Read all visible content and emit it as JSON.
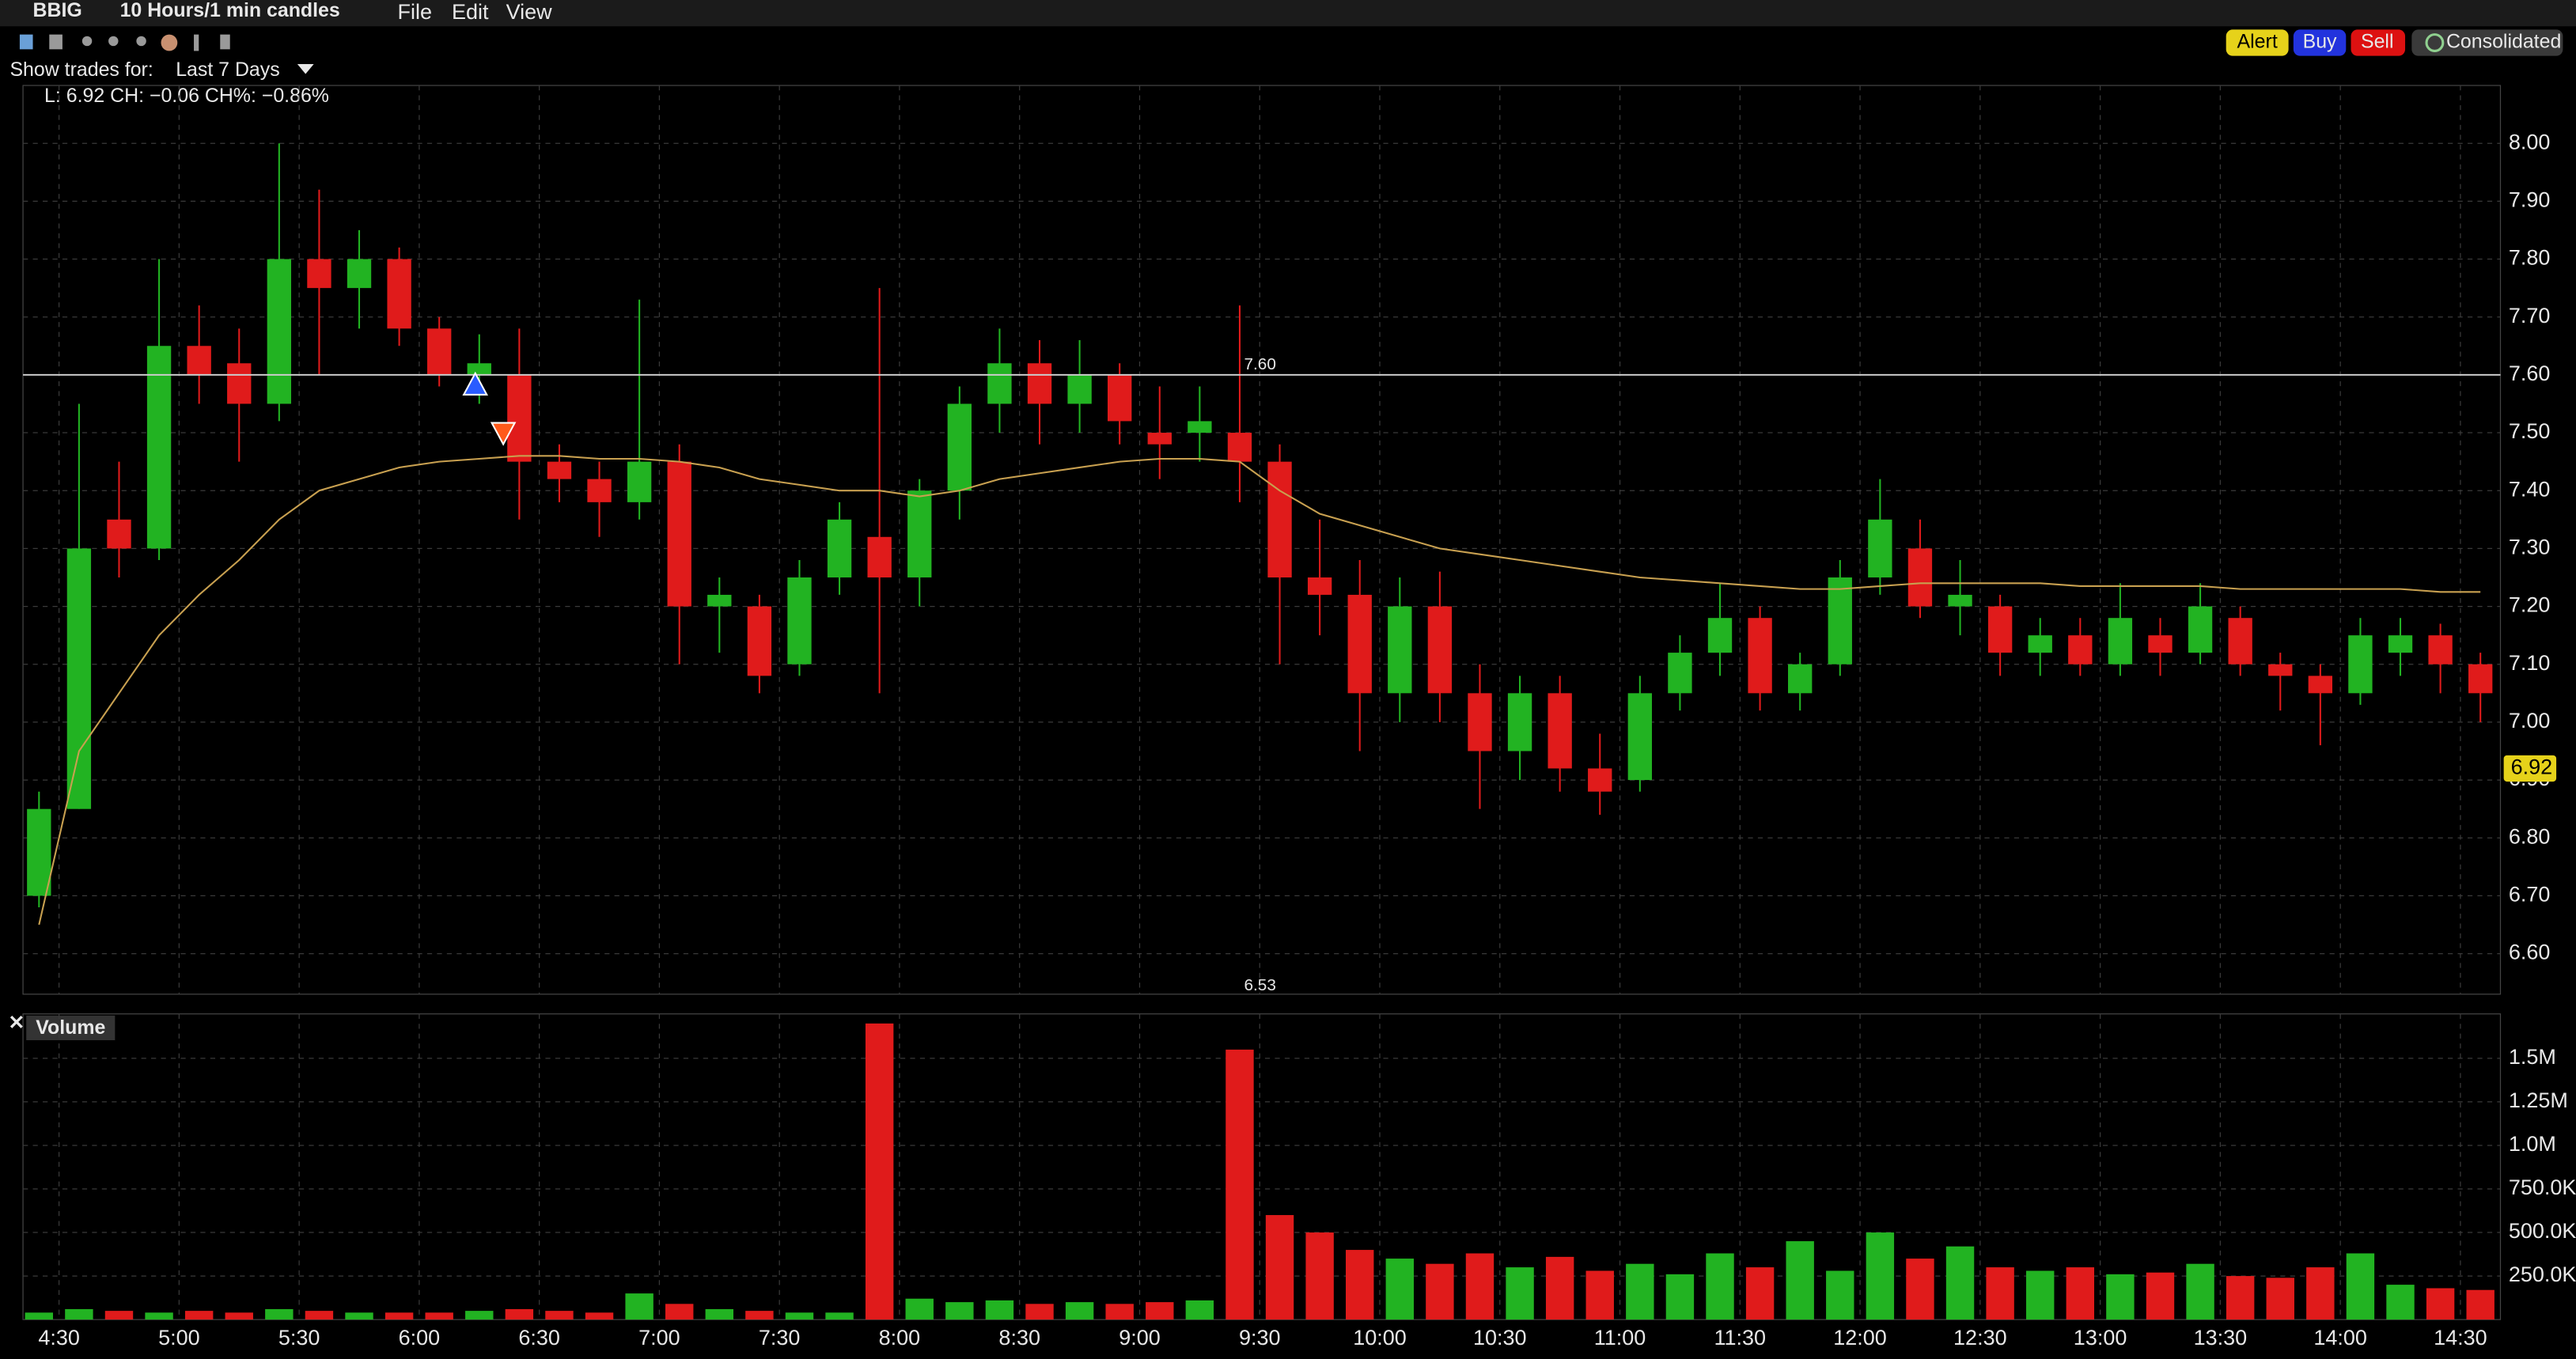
{
  "header": {
    "symbol": "BBIG",
    "period": "10 Hours/1 min candles",
    "menu": [
      "File",
      "Edit",
      "View"
    ],
    "trades_label": "Show trades for:",
    "trades_period": "Last 7 Days",
    "buttons": [
      "Alert",
      "Buy",
      "Sell",
      "Consolidated"
    ],
    "info": "L: 6.92 CH: −0.06 CH%: −0.86%"
  },
  "chart_data": {
    "type": "candlestick",
    "x": [
      265,
      275,
      285,
      295,
      305,
      315,
      325,
      335,
      345,
      355,
      365,
      375,
      385,
      395,
      405,
      415,
      425,
      435,
      445,
      455,
      465,
      475,
      485,
      495,
      505,
      515,
      525,
      535,
      545,
      555,
      565,
      575,
      585,
      595,
      605,
      615,
      625,
      635,
      645,
      655,
      665,
      675,
      685,
      695,
      705,
      715,
      725,
      735,
      745,
      755,
      765,
      775,
      785,
      795,
      805,
      815,
      825,
      835,
      845,
      855,
      865,
      875
    ],
    "open": [
      6.7,
      6.85,
      7.35,
      7.3,
      7.65,
      7.62,
      7.55,
      7.8,
      7.75,
      7.8,
      7.68,
      7.6,
      7.6,
      7.45,
      7.42,
      7.38,
      7.45,
      7.2,
      7.2,
      7.1,
      7.25,
      7.32,
      7.25,
      7.4,
      7.55,
      7.62,
      7.55,
      7.6,
      7.5,
      7.5,
      7.5,
      7.45,
      7.25,
      7.22,
      7.05,
      7.2,
      7.05,
      6.95,
      7.05,
      6.92,
      6.9,
      7.05,
      7.12,
      7.18,
      7.05,
      7.1,
      7.25,
      7.3,
      7.2,
      7.2,
      7.12,
      7.15,
      7.1,
      7.15,
      7.12,
      7.18,
      7.1,
      7.08,
      7.05,
      7.12,
      7.15,
      7.1
    ],
    "high": [
      6.88,
      7.55,
      7.45,
      7.8,
      7.72,
      7.68,
      8.0,
      7.92,
      7.85,
      7.82,
      7.7,
      7.67,
      7.68,
      7.48,
      7.45,
      7.73,
      7.48,
      7.25,
      7.22,
      7.28,
      7.38,
      7.75,
      7.42,
      7.58,
      7.68,
      7.66,
      7.66,
      7.62,
      7.58,
      7.58,
      7.72,
      7.48,
      7.35,
      7.28,
      7.25,
      7.26,
      7.1,
      7.08,
      7.08,
      6.98,
      7.08,
      7.15,
      7.24,
      7.2,
      7.12,
      7.28,
      7.42,
      7.35,
      7.28,
      7.22,
      7.18,
      7.18,
      7.24,
      7.18,
      7.24,
      7.2,
      7.12,
      7.1,
      7.18,
      7.18,
      7.17,
      7.12
    ],
    "low": [
      6.68,
      6.85,
      7.25,
      7.28,
      7.55,
      7.45,
      7.52,
      7.6,
      7.68,
      7.65,
      7.58,
      7.55,
      7.35,
      7.38,
      7.32,
      7.35,
      7.1,
      7.12,
      7.05,
      7.08,
      7.22,
      7.05,
      7.2,
      7.35,
      7.5,
      7.48,
      7.5,
      7.48,
      7.42,
      7.45,
      7.38,
      7.1,
      7.15,
      6.95,
      7.0,
      7.0,
      6.85,
      6.9,
      6.88,
      6.84,
      6.88,
      7.02,
      7.08,
      7.02,
      7.02,
      7.08,
      7.22,
      7.18,
      7.15,
      7.08,
      7.08,
      7.08,
      7.08,
      7.08,
      7.1,
      7.08,
      7.02,
      6.96,
      7.03,
      7.08,
      7.05,
      7.0
    ],
    "close": [
      6.85,
      7.3,
      7.3,
      7.65,
      7.6,
      7.55,
      7.8,
      7.75,
      7.8,
      7.68,
      7.6,
      7.62,
      7.45,
      7.42,
      7.38,
      7.45,
      7.2,
      7.22,
      7.08,
      7.25,
      7.35,
      7.25,
      7.4,
      7.55,
      7.62,
      7.55,
      7.6,
      7.52,
      7.48,
      7.52,
      7.45,
      7.25,
      7.22,
      7.05,
      7.2,
      7.05,
      6.95,
      7.05,
      6.92,
      6.88,
      7.05,
      7.12,
      7.18,
      7.05,
      7.1,
      7.25,
      7.35,
      7.2,
      7.22,
      7.12,
      7.15,
      7.1,
      7.18,
      7.12,
      7.2,
      7.1,
      7.08,
      7.05,
      7.15,
      7.15,
      7.1,
      7.05
    ],
    "up_color": "#22b322",
    "down_color": "#e01b1b",
    "vwap": {
      "color": "#c8a050",
      "values": [
        6.65,
        6.95,
        7.05,
        7.15,
        7.22,
        7.28,
        7.35,
        7.4,
        7.42,
        7.44,
        7.45,
        7.455,
        7.46,
        7.46,
        7.455,
        7.455,
        7.45,
        7.44,
        7.42,
        7.41,
        7.4,
        7.4,
        7.39,
        7.4,
        7.42,
        7.43,
        7.44,
        7.45,
        7.455,
        7.455,
        7.45,
        7.4,
        7.36,
        7.34,
        7.32,
        7.3,
        7.29,
        7.28,
        7.27,
        7.26,
        7.25,
        7.245,
        7.24,
        7.235,
        7.23,
        7.23,
        7.235,
        7.24,
        7.24,
        7.24,
        7.24,
        7.235,
        7.235,
        7.235,
        7.235,
        7.23,
        7.23,
        7.23,
        7.23,
        7.23,
        7.225,
        7.225
      ]
    },
    "xlim": [
      261,
      880
    ],
    "xticks": [
      {
        "value": 270,
        "label": "4:30"
      },
      {
        "value": 300,
        "label": "5:00"
      },
      {
        "value": 330,
        "label": "5:30"
      },
      {
        "value": 360,
        "label": "6:00"
      },
      {
        "value": 390,
        "label": "6:30"
      },
      {
        "value": 420,
        "label": "7:00"
      },
      {
        "value": 450,
        "label": "7:30"
      },
      {
        "value": 480,
        "label": "8:00"
      },
      {
        "value": 510,
        "label": "8:30"
      },
      {
        "value": 540,
        "label": "9:00"
      },
      {
        "value": 570,
        "label": "9:30"
      },
      {
        "value": 600,
        "label": "10:00"
      },
      {
        "value": 630,
        "label": "10:30"
      },
      {
        "value": 660,
        "label": "11:00"
      },
      {
        "value": 690,
        "label": "11:30"
      },
      {
        "value": 720,
        "label": "12:00"
      },
      {
        "value": 750,
        "label": "12:30"
      },
      {
        "value": 780,
        "label": "13:00"
      },
      {
        "value": 810,
        "label": "13:30"
      },
      {
        "value": 840,
        "label": "14:00"
      },
      {
        "value": 870,
        "label": "14:30"
      }
    ],
    "ylim": [
      6.53,
      8.1
    ],
    "yticks": [
      {
        "value": 6.6,
        "label": "6.60"
      },
      {
        "value": 6.7,
        "label": "6.70"
      },
      {
        "value": 6.8,
        "label": "6.80"
      },
      {
        "value": 6.9,
        "label": "6.90"
      },
      {
        "value": 7.0,
        "label": "7.00"
      },
      {
        "value": 7.1,
        "label": "7.10"
      },
      {
        "value": 7.2,
        "label": "7.20"
      },
      {
        "value": 7.3,
        "label": "7.30"
      },
      {
        "value": 7.4,
        "label": "7.40"
      },
      {
        "value": 7.5,
        "label": "7.50"
      },
      {
        "value": 7.6,
        "label": "7.60"
      },
      {
        "value": 7.7,
        "label": "7.70"
      },
      {
        "value": 7.8,
        "label": "7.80"
      },
      {
        "value": 7.9,
        "label": "7.90"
      },
      {
        "value": 8.0,
        "label": "8.00"
      }
    ],
    "grid": true,
    "price_line": {
      "value": 7.6,
      "label": "7.60"
    },
    "low_label": {
      "value": 6.53,
      "label": "6.53"
    },
    "last_price": {
      "value": 6.92,
      "label": "6.92",
      "color": "#e6d21a"
    },
    "trades": [
      {
        "x": 374,
        "value": 7.58,
        "color": "#2a5cff"
      },
      {
        "x": 381,
        "value": 7.5,
        "color": "#ff5a1a"
      }
    ],
    "volume": {
      "title": "Volume",
      "ylim": [
        0,
        1755000
      ],
      "yticks": [
        {
          "value": 250000,
          "label": "250.0K"
        },
        {
          "value": 500000,
          "label": "500.0K"
        },
        {
          "value": 750000,
          "label": "750.0K"
        },
        {
          "value": 1000000,
          "label": "1.0M"
        },
        {
          "value": 1250000,
          "label": "1.25M"
        },
        {
          "value": 1500000,
          "label": "1.5M"
        }
      ],
      "values": [
        40000,
        60000,
        50000,
        40000,
        50000,
        40000,
        60000,
        50000,
        40000,
        40000,
        40000,
        50000,
        60000,
        50000,
        40000,
        150000,
        90000,
        60000,
        50000,
        40000,
        40000,
        1700000,
        120000,
        100000,
        110000,
        90000,
        100000,
        90000,
        100000,
        110000,
        1550000,
        600000,
        500000,
        400000,
        350000,
        320000,
        380000,
        300000,
        360000,
        280000,
        320000,
        260000,
        380000,
        300000,
        450000,
        280000,
        500000,
        350000,
        420000,
        300000,
        280000,
        300000,
        260000,
        270000,
        320000,
        250000,
        240000,
        300000,
        380000,
        200000,
        180000,
        170000
      ]
    }
  }
}
